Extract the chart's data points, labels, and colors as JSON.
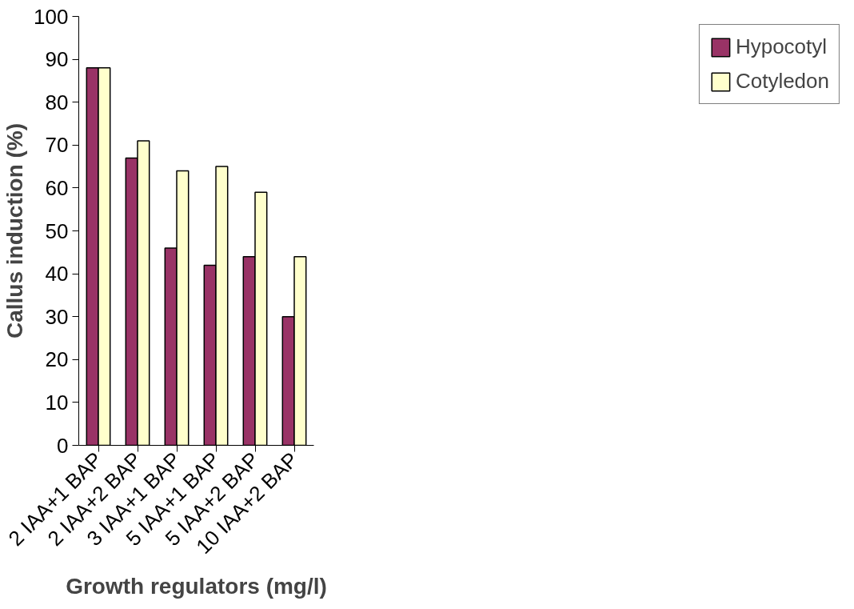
{
  "chart_data": {
    "type": "bar",
    "xlabel": "Growth regulators (mg/l)",
    "ylabel": "Callus induction (%)",
    "categories": [
      "2 IAA+1 BAP",
      "2 IAA+2 BAP",
      "3 IAA+1 BAP",
      "5 IAA+1 BAP",
      "5 IAA+2 BAP",
      "10 IAA+2 BAP"
    ],
    "series": [
      {
        "name": "Hypocotyl",
        "color": "#993366",
        "values": [
          88,
          67,
          46,
          42,
          44,
          30
        ]
      },
      {
        "name": "Cotyledon",
        "color": "#ffffcc",
        "values": [
          88,
          71,
          64,
          65,
          59,
          44
        ]
      }
    ],
    "ylim": [
      0,
      100
    ],
    "yticks": [
      0,
      10,
      20,
      30,
      40,
      50,
      60,
      70,
      80,
      90,
      100
    ],
    "grid": false,
    "legend": "right"
  }
}
